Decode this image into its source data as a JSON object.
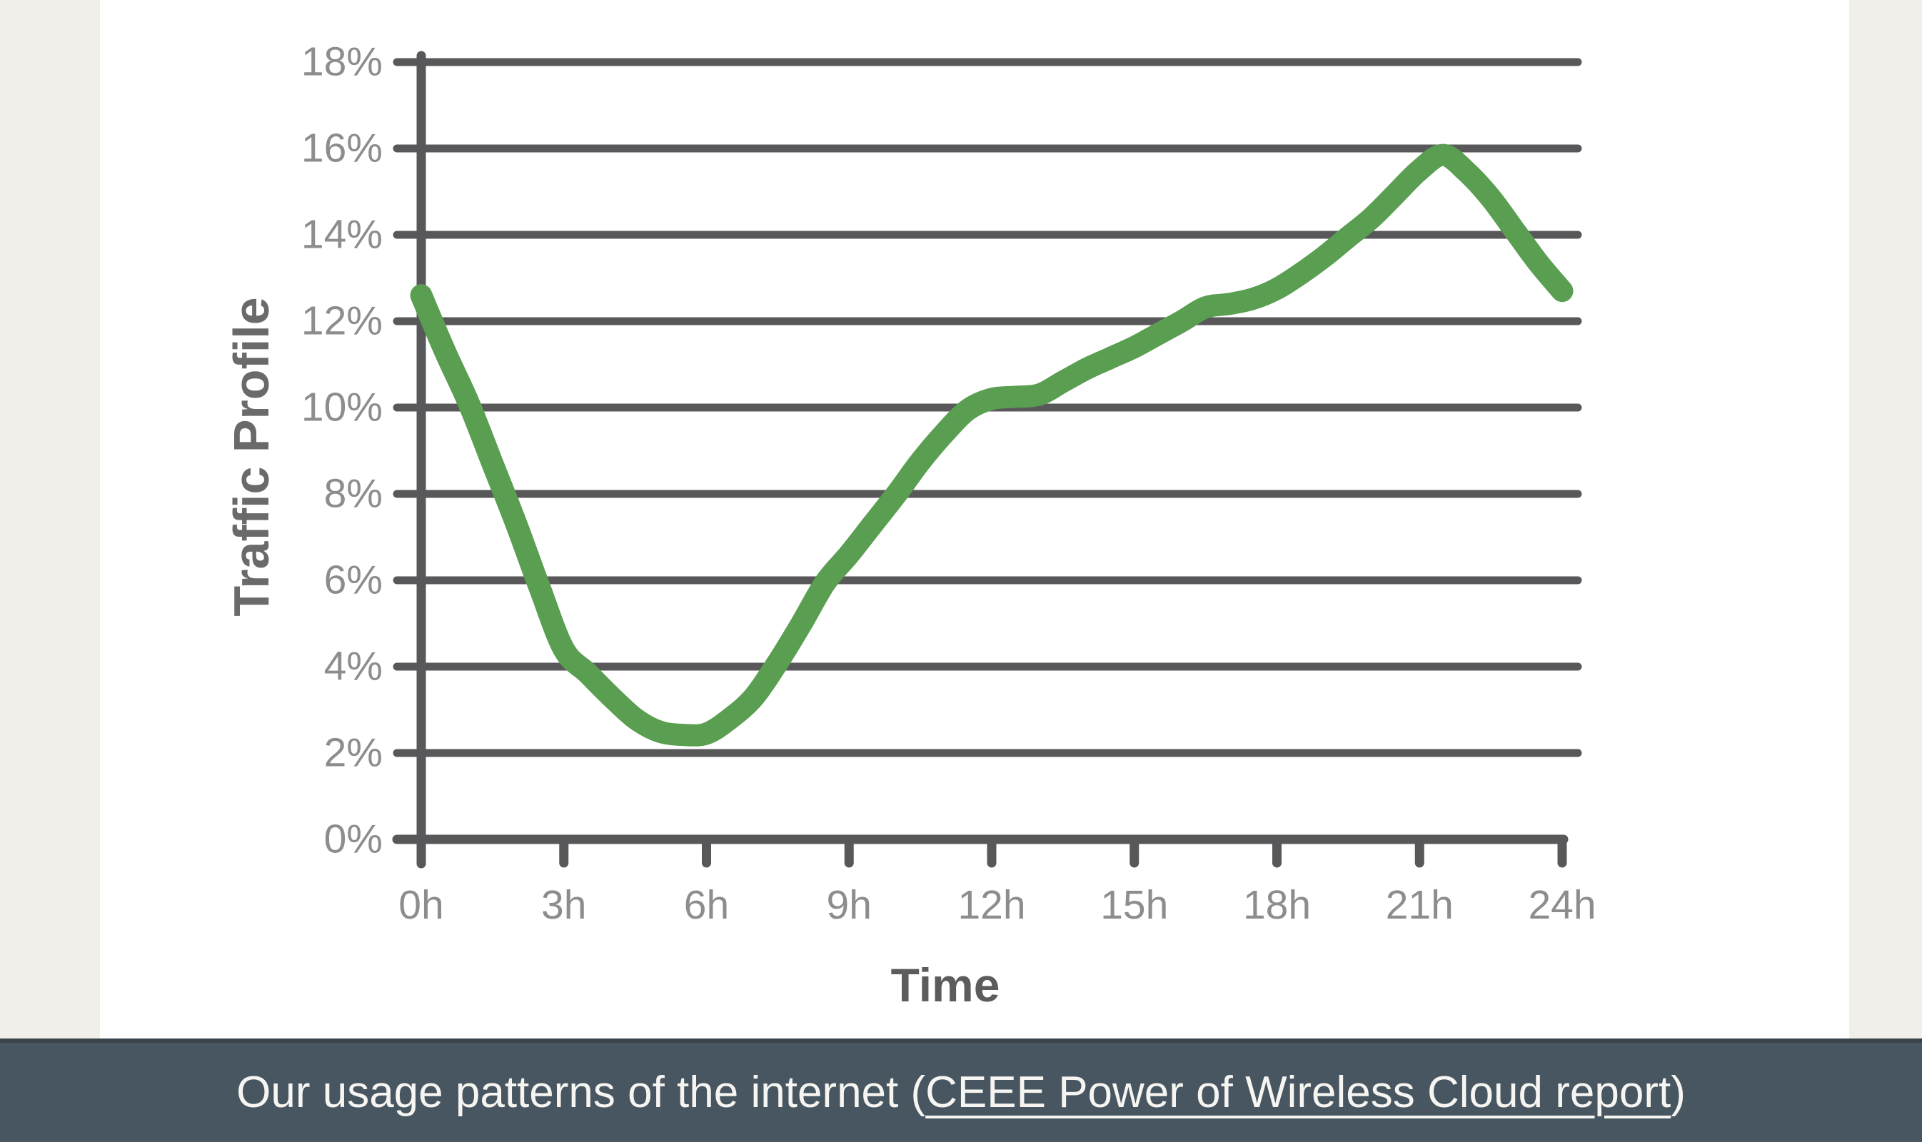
{
  "page": {
    "background_color": "#F0EFE9",
    "panel_color": "#FFFFFF"
  },
  "chart_data": {
    "type": "line",
    "title": "",
    "xlabel": "Time",
    "ylabel": "Traffic Profile",
    "x_ticks": [
      "0h",
      "3h",
      "6h",
      "9h",
      "12h",
      "15h",
      "18h",
      "21h",
      "24h"
    ],
    "y_ticks": [
      "0%",
      "2%",
      "4%",
      "6%",
      "8%",
      "10%",
      "12%",
      "14%",
      "16%",
      "18%"
    ],
    "xlim": [
      0,
      24
    ],
    "ylim": [
      0,
      18
    ],
    "grid": "horizontal",
    "legend": "none",
    "line_color": "#5A9E52",
    "grid_color": "#58585A",
    "tick_label_color": "#8D8D8D",
    "series": [
      {
        "name": "Traffic Profile",
        "points": [
          [
            0,
            12.6
          ],
          [
            0.5,
            11.3
          ],
          [
            1,
            10.1
          ],
          [
            1.5,
            8.7
          ],
          [
            2,
            7.3
          ],
          [
            2.5,
            5.8
          ],
          [
            3,
            4.4
          ],
          [
            3.5,
            3.85
          ],
          [
            4,
            3.3
          ],
          [
            4.5,
            2.8
          ],
          [
            5,
            2.5
          ],
          [
            5.5,
            2.42
          ],
          [
            6,
            2.45
          ],
          [
            6.5,
            2.8
          ],
          [
            7,
            3.3
          ],
          [
            7.5,
            4.1
          ],
          [
            8,
            5.0
          ],
          [
            8.5,
            5.95
          ],
          [
            9,
            6.6
          ],
          [
            9.5,
            7.3
          ],
          [
            10,
            8.0
          ],
          [
            10.5,
            8.75
          ],
          [
            11,
            9.4
          ],
          [
            11.5,
            9.95
          ],
          [
            12,
            10.2
          ],
          [
            12.5,
            10.25
          ],
          [
            13,
            10.3
          ],
          [
            13.5,
            10.6
          ],
          [
            14,
            10.9
          ],
          [
            14.5,
            11.15
          ],
          [
            15,
            11.4
          ],
          [
            15.5,
            11.7
          ],
          [
            16,
            12.0
          ],
          [
            16.5,
            12.32
          ],
          [
            17,
            12.4
          ],
          [
            17.5,
            12.52
          ],
          [
            18,
            12.75
          ],
          [
            18.5,
            13.1
          ],
          [
            19,
            13.5
          ],
          [
            19.5,
            13.95
          ],
          [
            20,
            14.4
          ],
          [
            20.5,
            14.95
          ],
          [
            21,
            15.5
          ],
          [
            21.5,
            15.85
          ],
          [
            22,
            15.45
          ],
          [
            22.5,
            14.85
          ],
          [
            23,
            14.1
          ],
          [
            23.5,
            13.35
          ],
          [
            24,
            12.7
          ]
        ]
      }
    ]
  },
  "caption": {
    "prefix": "Our usage patterns of the internet (",
    "link": "CEEE Power of Wireless Cloud report",
    "suffix": ")",
    "bar_color": "#475660",
    "text_color": "#F6F5F1"
  }
}
